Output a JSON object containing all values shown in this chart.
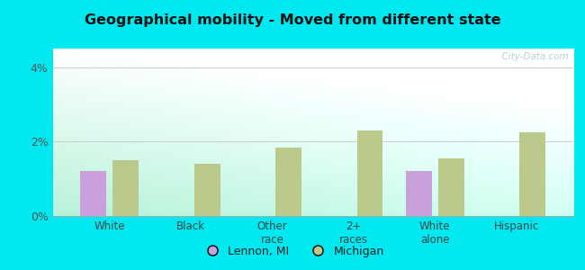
{
  "title": "Geographical mobility - Moved from different state",
  "categories": [
    "White",
    "Black",
    "Other\nrace",
    "2+\nraces",
    "White\nalone",
    "Hispanic"
  ],
  "lennon_values": [
    1.2,
    0.0,
    0.0,
    0.0,
    1.2,
    0.0
  ],
  "michigan_values": [
    1.5,
    1.4,
    1.85,
    2.3,
    1.55,
    2.25
  ],
  "lennon_color": "#c9a0dc",
  "michigan_color": "#bbc98a",
  "ylim": [
    0,
    4.5
  ],
  "yticks": [
    0,
    2,
    4
  ],
  "ytick_labels": [
    "0%",
    "2%",
    "4%"
  ],
  "bar_width": 0.32,
  "outer_color": "#00e8f0",
  "legend_lennon": "Lennon, MI",
  "legend_michigan": "Michigan",
  "watermark": "  City-Data.com"
}
